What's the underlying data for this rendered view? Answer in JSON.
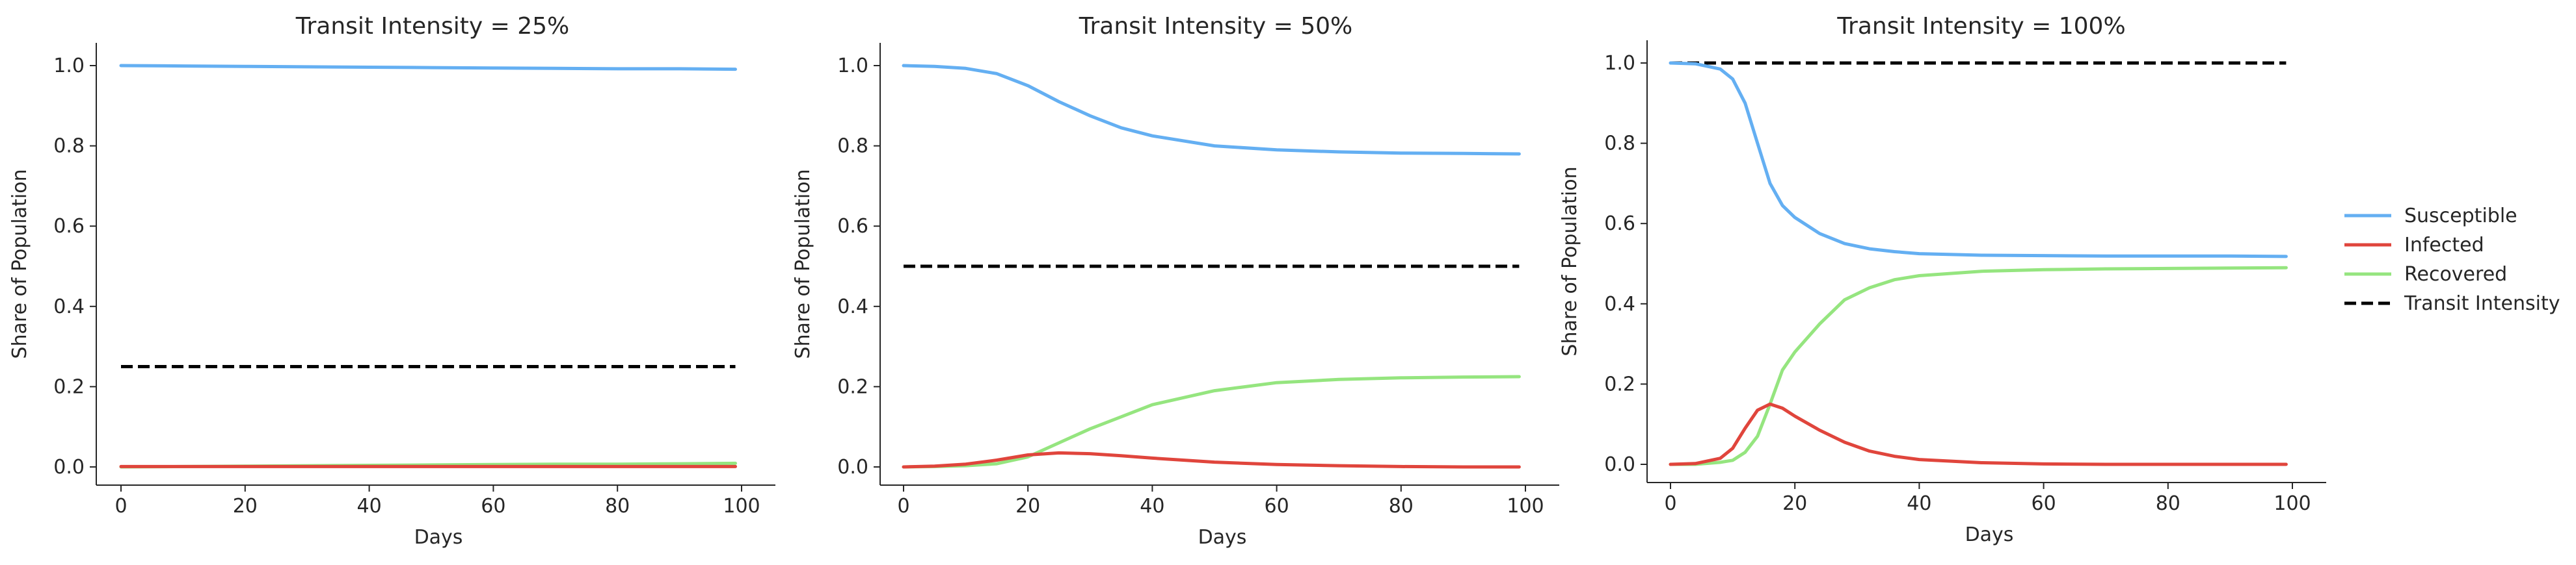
{
  "legend": {
    "placement": "center-right",
    "entries": [
      {
        "label": "Susceptible",
        "color": "#64AFF2",
        "dashed": false
      },
      {
        "label": "Infected",
        "color": "#E0453C",
        "dashed": false
      },
      {
        "label": "Recovered",
        "color": "#95E57F",
        "dashed": false
      },
      {
        "label": "Transit Intensity",
        "color": "#000000",
        "dashed": true
      }
    ]
  },
  "chart_data": [
    {
      "type": "line",
      "title": "Transit Intensity = 25%",
      "xlabel": "Days",
      "ylabel": "Share of Population",
      "xlim": [
        0,
        100
      ],
      "ylim": [
        0.0,
        1.0
      ],
      "xticks": [
        "0",
        "20",
        "40",
        "60",
        "80",
        "100"
      ],
      "yticks": [
        "0.0",
        "0.2",
        "0.4",
        "0.6",
        "0.8",
        "1.0"
      ],
      "grid": false,
      "x": [
        0,
        10,
        20,
        30,
        40,
        50,
        60,
        70,
        80,
        90,
        99
      ],
      "series": [
        {
          "name": "Susceptible",
          "color": "#64AFF2",
          "values": [
            1.0,
            0.999,
            0.998,
            0.997,
            0.996,
            0.995,
            0.994,
            0.993,
            0.992,
            0.992,
            0.991
          ]
        },
        {
          "name": "Infected",
          "color": "#E0453C",
          "values": [
            0.001,
            0.001,
            0.001,
            0.001,
            0.001,
            0.001,
            0.001,
            0.001,
            0.001,
            0.001,
            0.001
          ]
        },
        {
          "name": "Recovered",
          "color": "#95E57F",
          "values": [
            0.0,
            0.001,
            0.002,
            0.003,
            0.004,
            0.005,
            0.006,
            0.007,
            0.007,
            0.008,
            0.009
          ]
        },
        {
          "name": "Transit Intensity",
          "color": "#000000",
          "dashed": true,
          "values": [
            0.25,
            0.25,
            0.25,
            0.25,
            0.25,
            0.25,
            0.25,
            0.25,
            0.25,
            0.25,
            0.25
          ]
        }
      ]
    },
    {
      "type": "line",
      "title": "Transit Intensity = 50%",
      "xlabel": "Days",
      "ylabel": "Share of Population",
      "xlim": [
        0,
        100
      ],
      "ylim": [
        0.0,
        1.0
      ],
      "xticks": [
        "0",
        "20",
        "40",
        "60",
        "80",
        "100"
      ],
      "yticks": [
        "0.0",
        "0.2",
        "0.4",
        "0.6",
        "0.8",
        "1.0"
      ],
      "grid": false,
      "x": [
        0,
        5,
        10,
        15,
        20,
        25,
        30,
        35,
        40,
        50,
        60,
        70,
        80,
        90,
        99
      ],
      "series": [
        {
          "name": "Susceptible",
          "color": "#64AFF2",
          "values": [
            1.0,
            0.998,
            0.993,
            0.98,
            0.95,
            0.91,
            0.875,
            0.845,
            0.825,
            0.8,
            0.79,
            0.785,
            0.782,
            0.781,
            0.78
          ]
        },
        {
          "name": "Infected",
          "color": "#E0453C",
          "values": [
            0.0,
            0.002,
            0.007,
            0.017,
            0.03,
            0.035,
            0.033,
            0.028,
            0.022,
            0.012,
            0.006,
            0.003,
            0.001,
            0.0,
            0.0
          ]
        },
        {
          "name": "Recovered",
          "color": "#95E57F",
          "values": [
            0.0,
            0.001,
            0.003,
            0.008,
            0.025,
            0.06,
            0.095,
            0.125,
            0.155,
            0.19,
            0.21,
            0.218,
            0.222,
            0.224,
            0.225
          ]
        },
        {
          "name": "Transit Intensity",
          "color": "#000000",
          "dashed": true,
          "values": [
            0.5,
            0.5,
            0.5,
            0.5,
            0.5,
            0.5,
            0.5,
            0.5,
            0.5,
            0.5,
            0.5,
            0.5,
            0.5,
            0.5,
            0.5
          ]
        }
      ]
    },
    {
      "type": "line",
      "title": "Transit Intensity = 100%",
      "xlabel": "Days",
      "ylabel": "Share of Population",
      "xlim": [
        0,
        100
      ],
      "ylim": [
        0.0,
        1.0
      ],
      "xticks": [
        "0",
        "20",
        "40",
        "60",
        "80",
        "100"
      ],
      "yticks": [
        "0.0",
        "0.2",
        "0.4",
        "0.6",
        "0.8",
        "1.0"
      ],
      "grid": false,
      "x": [
        0,
        4,
        8,
        10,
        12,
        14,
        16,
        18,
        20,
        24,
        28,
        32,
        36,
        40,
        50,
        60,
        70,
        80,
        90,
        99
      ],
      "series": [
        {
          "name": "Susceptible",
          "color": "#64AFF2",
          "values": [
            1.0,
            0.998,
            0.985,
            0.96,
            0.9,
            0.8,
            0.7,
            0.645,
            0.615,
            0.575,
            0.55,
            0.537,
            0.53,
            0.525,
            0.521,
            0.52,
            0.519,
            0.519,
            0.519,
            0.518
          ]
        },
        {
          "name": "Infected",
          "color": "#E0453C",
          "values": [
            0.0,
            0.002,
            0.015,
            0.04,
            0.09,
            0.135,
            0.15,
            0.14,
            0.12,
            0.085,
            0.055,
            0.033,
            0.02,
            0.012,
            0.004,
            0.001,
            0.0,
            0.0,
            0.0,
            0.0
          ]
        },
        {
          "name": "Recovered",
          "color": "#95E57F",
          "values": [
            0.0,
            0.0,
            0.005,
            0.01,
            0.03,
            0.07,
            0.15,
            0.235,
            0.28,
            0.35,
            0.41,
            0.44,
            0.46,
            0.47,
            0.481,
            0.485,
            0.487,
            0.488,
            0.489,
            0.49
          ]
        },
        {
          "name": "Transit Intensity",
          "color": "#000000",
          "dashed": true,
          "values": [
            1.0,
            1.0,
            1.0,
            1.0,
            1.0,
            1.0,
            1.0,
            1.0,
            1.0,
            1.0,
            1.0,
            1.0,
            1.0,
            1.0,
            1.0,
            1.0,
            1.0,
            1.0,
            1.0,
            1.0
          ]
        }
      ]
    }
  ]
}
